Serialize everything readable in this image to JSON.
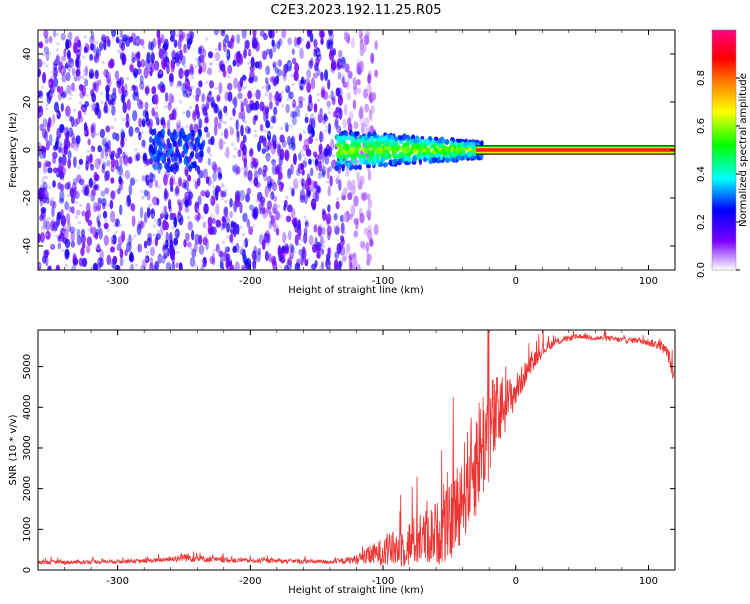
{
  "title": "C2E3.2023.192.11.25.R05",
  "chart_data": [
    {
      "type": "heatmap",
      "xlabel": "Height of straight line (km)",
      "ylabel": "Frequency (Hz)",
      "xlim": [
        -360,
        120
      ],
      "ylim": [
        -50,
        50
      ],
      "xticks": [
        -300,
        -200,
        -100,
        0,
        100
      ],
      "yticks": [
        -40,
        -20,
        0,
        20,
        40
      ],
      "colorbar": {
        "label": "Normalized spectral amplitude",
        "range": [
          0,
          1
        ],
        "ticks": [
          "0.0",
          "0.2",
          "0.4",
          "0.6",
          "0.8"
        ],
        "colors": [
          "#ffffff",
          "#7a00ff",
          "#0000ff",
          "#00ffff",
          "#00ff00",
          "#ffff00",
          "#ff8000",
          "#ff0000",
          "#ff0080"
        ]
      },
      "regions": [
        {
          "x": [
            -360,
            -130
          ],
          "freq": [
            -50,
            50
          ],
          "amplitude": 0.1,
          "description_free": true
        },
        {
          "x": [
            -135,
            -25
          ],
          "freq": [
            -8,
            8
          ],
          "amplitude": 0.4
        },
        {
          "x": [
            -25,
            120
          ],
          "freq": [
            -1.5,
            1.5
          ],
          "amplitude": 0.9
        }
      ]
    },
    {
      "type": "line",
      "xlabel": "Height of straight line (km)",
      "ylabel": "SNR (10 * v/v)",
      "xlim": [
        -360,
        120
      ],
      "ylim": [
        0,
        5900
      ],
      "xticks": [
        -300,
        -200,
        -100,
        0,
        100
      ],
      "yticks": [
        0,
        1000,
        2000,
        3000,
        4000,
        5000
      ],
      "color": "#ee3333",
      "series": [
        {
          "x": [
            -360,
            -340,
            -320,
            -300,
            -280,
            -260,
            -250,
            -240,
            -220,
            -200,
            -180,
            -160,
            -140,
            -130,
            -120,
            -110,
            -100,
            -90,
            -80,
            -70,
            -60,
            -50,
            -45,
            -40,
            -35,
            -30,
            -25,
            -20,
            -15,
            -10,
            -5,
            0,
            10,
            20,
            30,
            40,
            50,
            60,
            70,
            80,
            90,
            100,
            110,
            115,
            118,
            120
          ],
          "y": [
            180,
            190,
            200,
            210,
            220,
            260,
            320,
            280,
            240,
            230,
            220,
            210,
            200,
            220,
            260,
            350,
            450,
            520,
            650,
            780,
            900,
            1100,
            1500,
            1900,
            2300,
            2700,
            3100,
            3500,
            3700,
            4000,
            4200,
            4400,
            5000,
            5400,
            5600,
            5700,
            5750,
            5700,
            5700,
            5650,
            5650,
            5600,
            5500,
            5300,
            4900,
            4700
          ],
          "noise": [
            80,
            80,
            80,
            80,
            80,
            100,
            200,
            150,
            100,
            90,
            90,
            90,
            90,
            120,
            200,
            400,
            600,
            800,
            1000,
            1100,
            1300,
            1600,
            1800,
            2000,
            2200,
            2400,
            2400,
            2200,
            1800,
            1400,
            900,
            700,
            400,
            250,
            150,
            120,
            100,
            100,
            100,
            120,
            120,
            150,
            200,
            300,
            300,
            300
          ]
        }
      ]
    }
  ]
}
